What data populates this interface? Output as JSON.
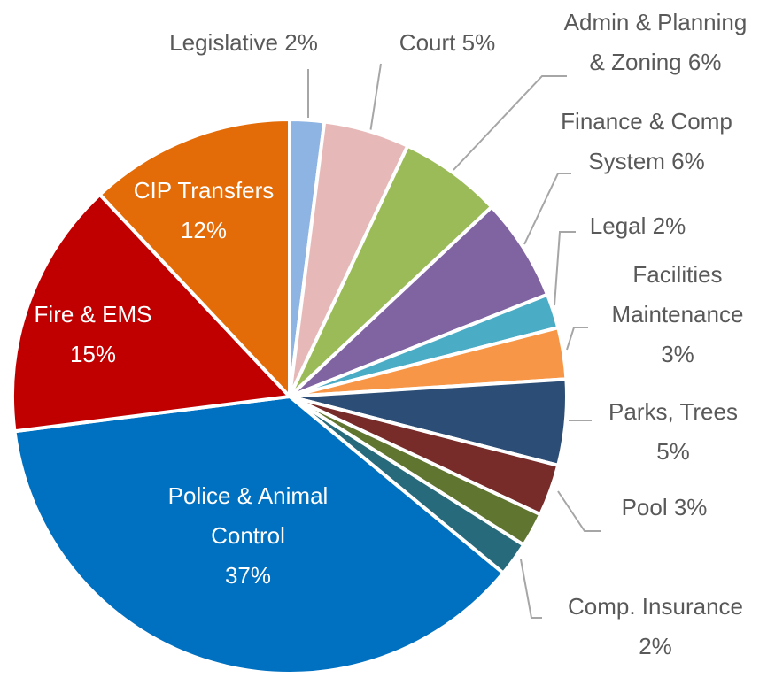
{
  "chart_data": {
    "type": "pie",
    "categories": [
      "Legislative",
      "Court",
      "Admin & Planning & Zoning",
      "Finance & Comp System",
      "Legal",
      "Facilities Maintenance",
      "Parks, Trees",
      "Pool",
      null,
      "Comp. Insurance",
      "Police & Animal Control",
      "Fire & EMS",
      "CIP Transfers"
    ],
    "values": [
      2,
      5,
      6,
      6,
      2,
      3,
      5,
      3,
      2,
      2,
      37,
      15,
      12
    ],
    "value_labels": [
      "2%",
      "5%",
      "6%",
      "6%",
      "2%",
      "3%",
      "5%",
      "3%",
      null,
      "2%",
      "37%",
      "15%",
      "12%"
    ],
    "colors": [
      "#8db4e2",
      "#e6b9b8",
      "#9bbb59",
      "#8064a2",
      "#4bacc6",
      "#f79646",
      "#2c4d75",
      "#772c2a",
      "#5f7530",
      "#276a7c",
      "#0070c0",
      "#c00000",
      "#e36c09"
    ]
  }
}
